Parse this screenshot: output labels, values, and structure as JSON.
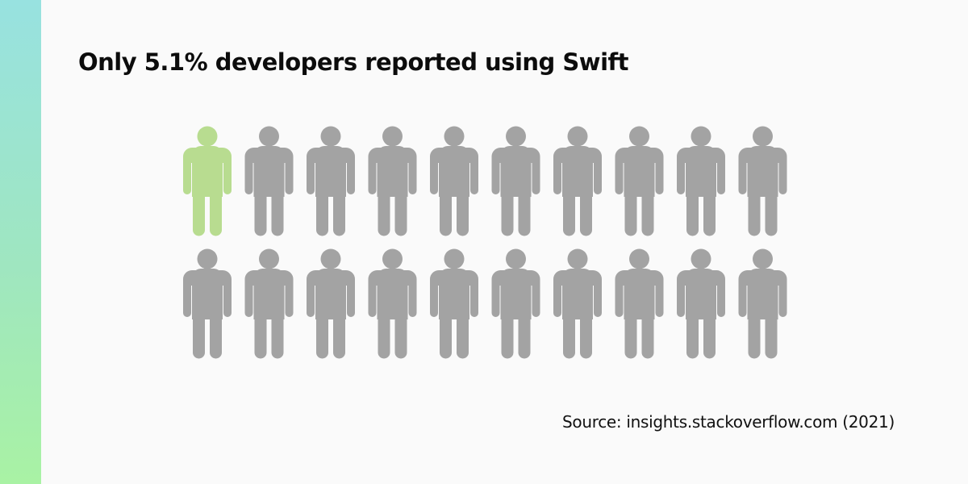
{
  "header": {
    "title": "Only 5.1% developers reported using Swift"
  },
  "footer": {
    "source": "Source: insights.stackoverflow.com (2021)"
  },
  "colors": {
    "highlight": "#b8dc90",
    "base": "#a3a3a3",
    "accent_gradient_top": "#98e2e0",
    "accent_gradient_bottom": "#a9f2a4"
  },
  "chart_data": {
    "type": "pictogram",
    "icon": "person-icon",
    "total_icons": 20,
    "rows": 2,
    "columns": 10,
    "highlighted_icons": 1,
    "highlight_label": "Swift",
    "percent_reported": 5.1
  }
}
